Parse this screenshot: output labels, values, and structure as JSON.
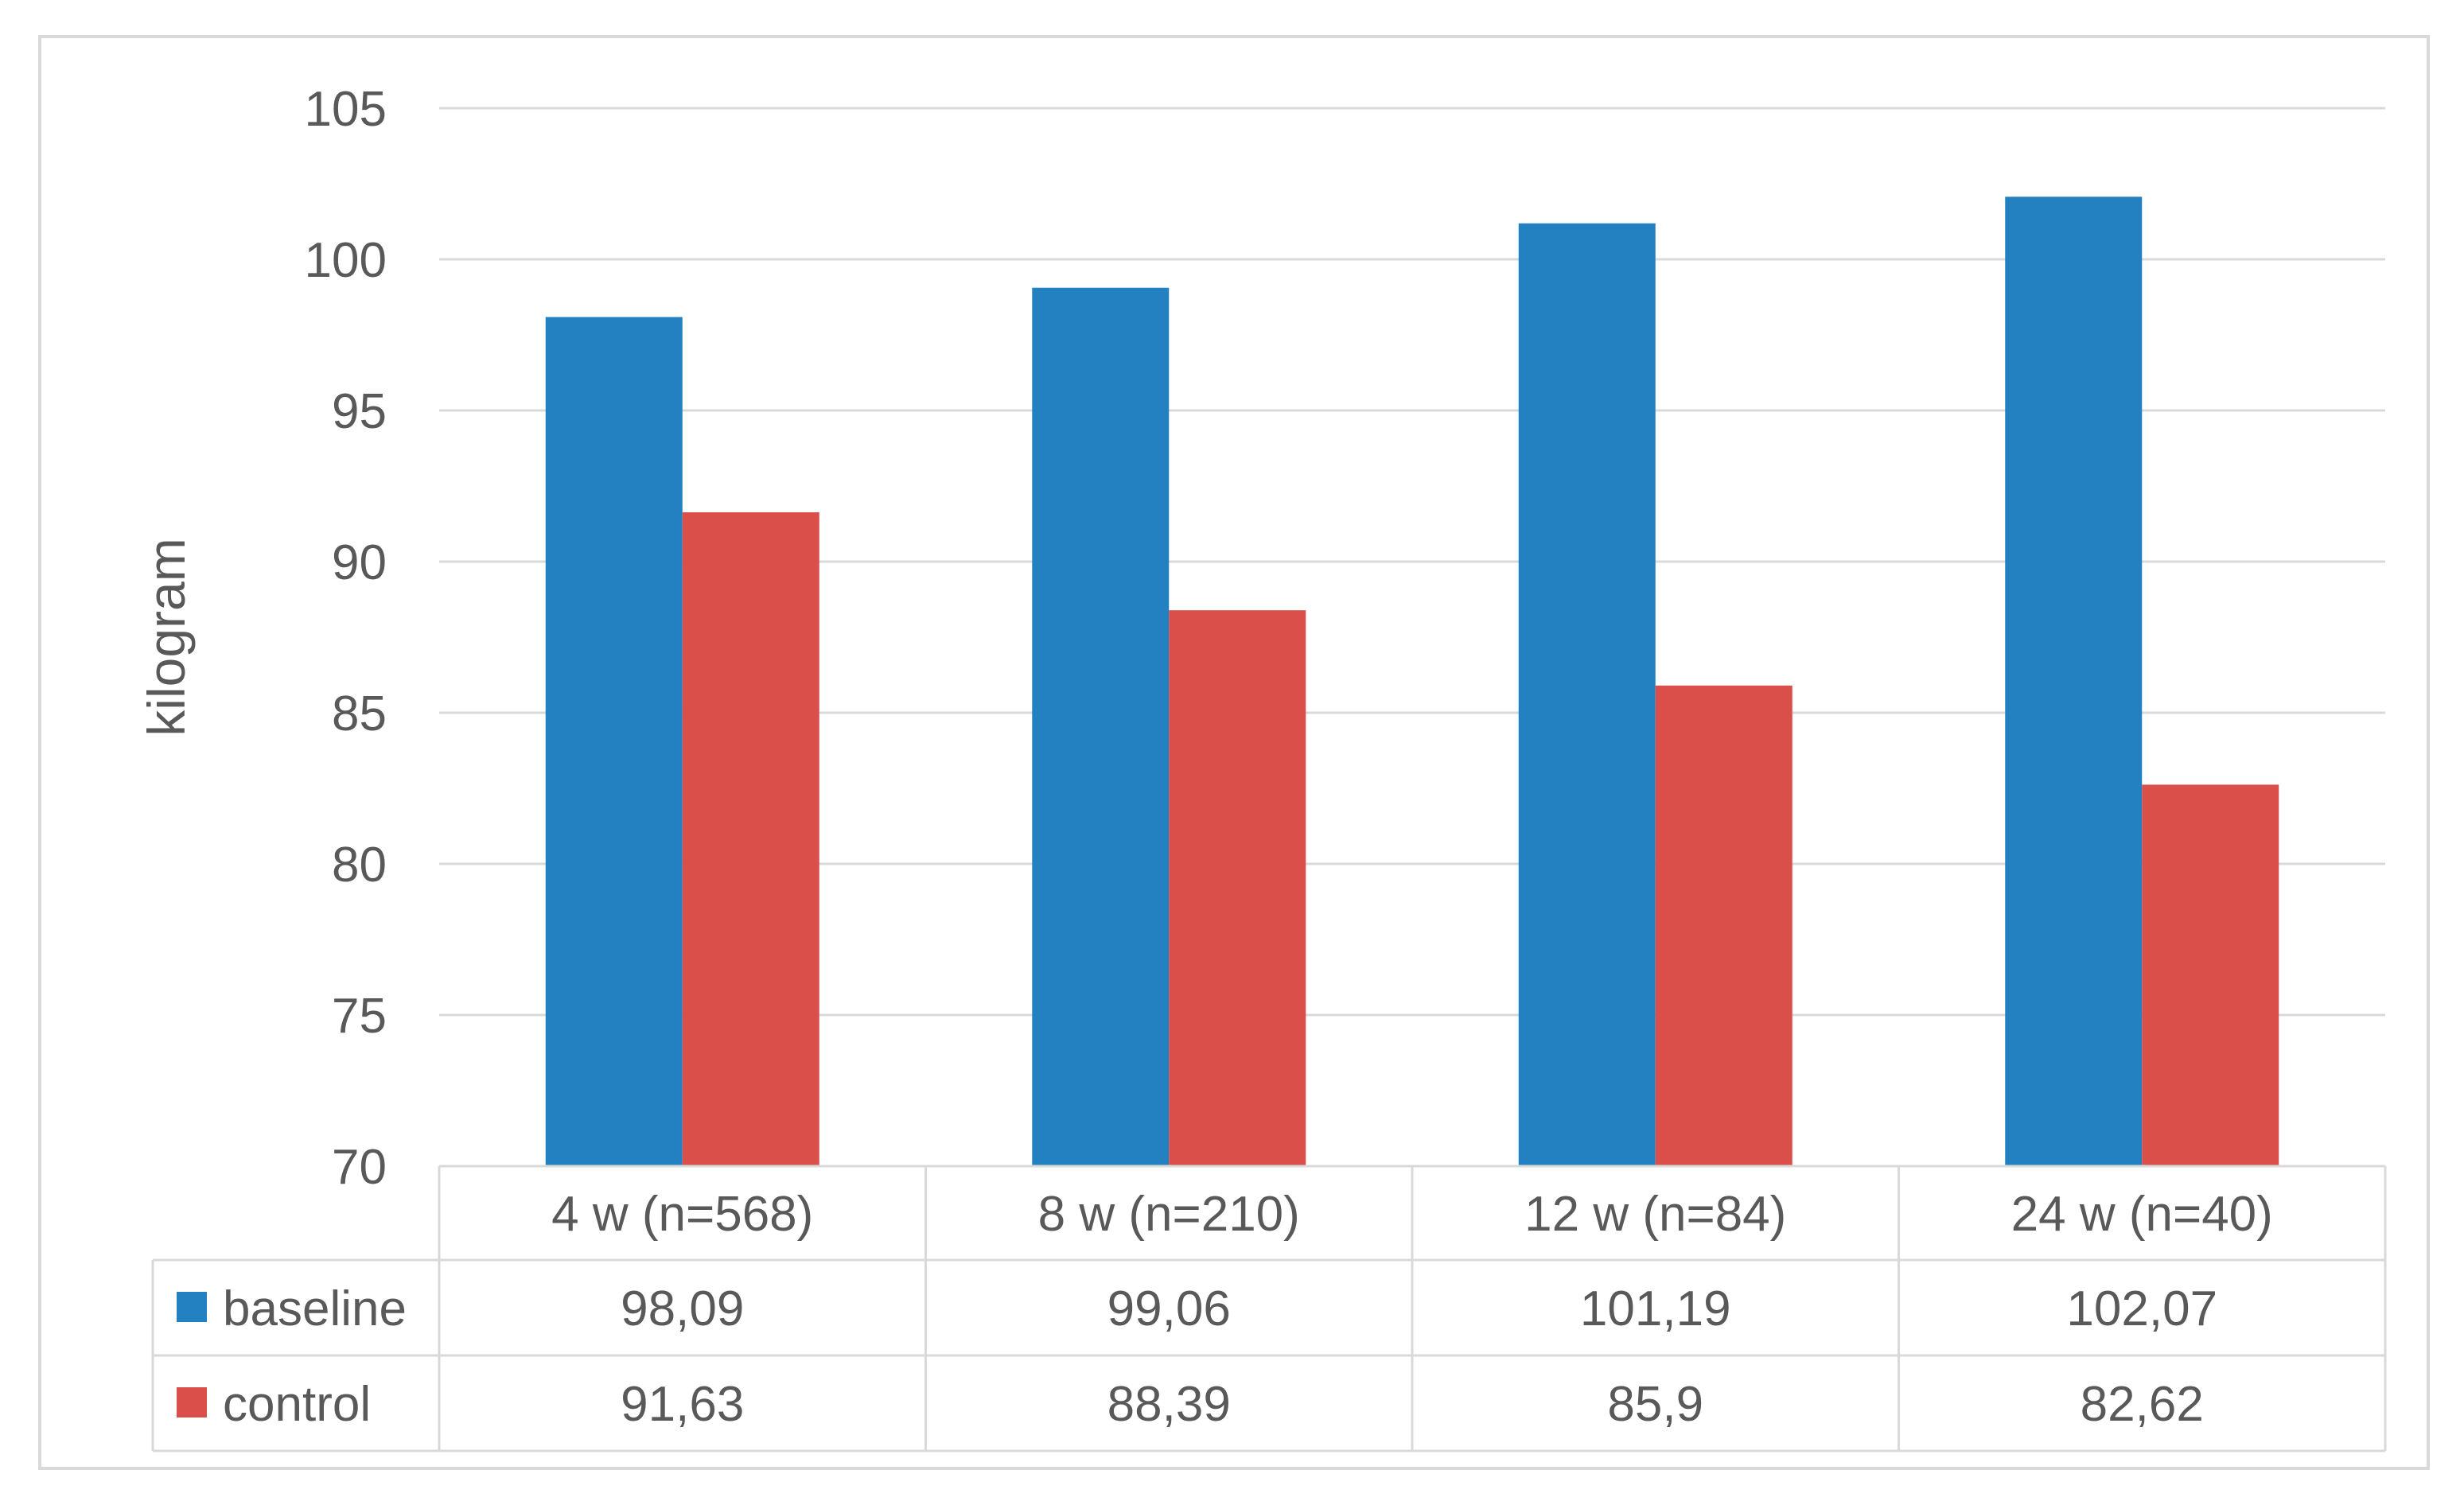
{
  "chart_data": {
    "type": "bar",
    "title": "",
    "xlabel": "",
    "ylabel": "kilogram",
    "categories": [
      "4 w (n=568)",
      "8 w (n=210)",
      "12 w (n=84)",
      "24 w (n=40)"
    ],
    "series": [
      {
        "name": "baseline",
        "color": "#2481C1",
        "values": [
          98.09,
          99.06,
          101.19,
          102.07
        ],
        "labels": [
          "98,09",
          "99,06",
          "101,19",
          "102,07"
        ]
      },
      {
        "name": "control",
        "color": "#DB4F4B",
        "values": [
          91.63,
          88.39,
          85.9,
          82.62
        ],
        "labels": [
          "91,63",
          "88,39",
          "85,9",
          "82,62"
        ]
      }
    ],
    "ylim": [
      70,
      105
    ],
    "yticks": [
      70,
      75,
      80,
      85,
      90,
      95,
      100,
      105
    ],
    "grid": true,
    "legend": "data-table-left"
  }
}
